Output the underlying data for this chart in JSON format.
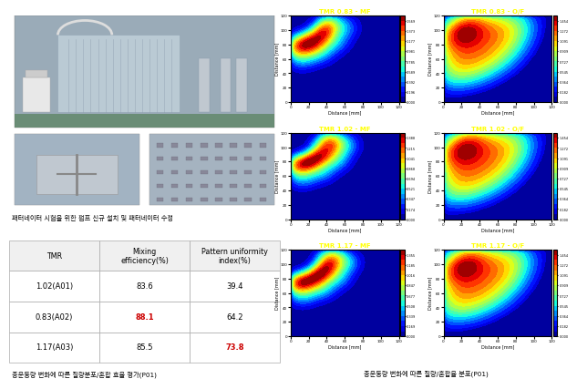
{
  "left_caption": "패터네이터 시험을 위한 펌프 신규 설치 및 패터네이터 수정",
  "left_bottom_caption": "총운동량 변화에 따른 질량분포/혼합 효율 평가(P01)",
  "right_bottom_caption": "총운동량 변화에 따른 질량/혼합율 분포(P01)",
  "table_headers": [
    "TMR",
    "Mixing\nefficiency(%)",
    "Pattern uniformity\nindex(%)"
  ],
  "table_rows": [
    [
      "1.02(A01)",
      "83.6",
      "39.4"
    ],
    [
      "0.83(A02)",
      "88.1",
      "64.2"
    ],
    [
      "1.17(A03)",
      "85.5",
      "73.8"
    ]
  ],
  "table_bold_cells": [
    [
      1,
      1
    ],
    [
      2,
      2
    ]
  ],
  "table_bold_colors": [
    "#cc0000",
    "#cc0000"
  ],
  "plot_titles": [
    [
      "TMR 0.83 - MF",
      "TMR 0.83 - O/F"
    ],
    [
      "TMR 1.02 - MF",
      "TMR 1.02 - O/F"
    ],
    [
      "TMR 1.17 - MF",
      "TMR 1.17 - O/F"
    ]
  ],
  "bg_color": "#ffffff",
  "photo_top_color": "#b0b8c0",
  "photo_bl_color": "#a0a8b0",
  "photo_br_color": "#a8b0b8"
}
